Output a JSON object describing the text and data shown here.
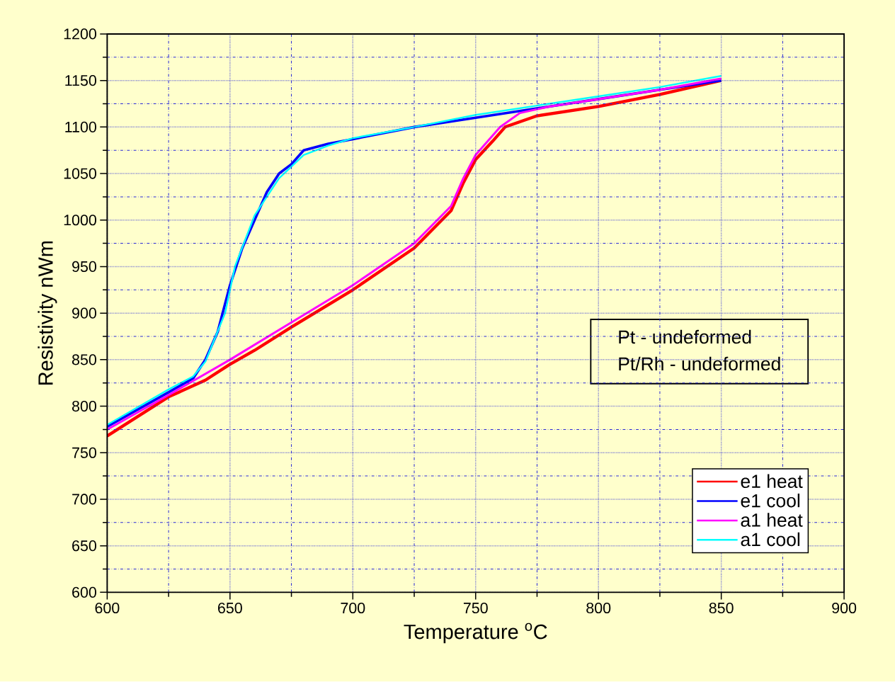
{
  "chart_data": {
    "type": "line",
    "xlabel": "Temperature    $^{o}$C",
    "ylabel": "Resistivity    nWm",
    "annotations": [
      "Pt - undeformed",
      "Pt/Rh - undeformed"
    ],
    "xlim": [
      600,
      900
    ],
    "ylim": [
      600,
      1200
    ],
    "xticks": [
      600,
      {
        "value": 625,
        "label": null
      },
      650,
      {
        "value": 675,
        "label": null
      },
      700,
      {
        "value": 725,
        "label": null
      },
      750,
      {
        "value": 775,
        "label": null
      },
      800,
      {
        "value": 825,
        "label": null
      },
      850,
      {
        "value": 875,
        "label": null
      },
      900
    ],
    "yticks": [
      600,
      {
        "value": 625,
        "label": null
      },
      650,
      {
        "value": 675,
        "label": null
      },
      700,
      {
        "value": 725,
        "label": null
      },
      750,
      {
        "value": 775,
        "label": null
      },
      800,
      {
        "value": 825,
        "label": null
      },
      850,
      {
        "value": 875,
        "label": null
      },
      900,
      {
        "value": 925,
        "label": null
      },
      950,
      {
        "value": 975,
        "label": null
      },
      1000,
      {
        "value": 1025,
        "label": null
      },
      1050,
      {
        "value": 1075,
        "label": null
      },
      1100,
      {
        "value": 1125,
        "label": null
      },
      1150,
      {
        "value": 1175,
        "label": null
      },
      1200
    ],
    "grid": true,
    "legend": "bottom right",
    "series": [
      {
        "name": "e1 heat",
        "color": "#ff0000",
        "x": [
          600,
          625,
          640,
          650,
          660,
          675,
          700,
          725,
          740,
          745,
          750,
          757,
          762,
          775,
          800,
          825,
          850
        ],
        "values": [
          768,
          810,
          828,
          845,
          860,
          885,
          925,
          970,
          1010,
          1040,
          1065,
          1085,
          1100,
          1112,
          1122,
          1135,
          1150
        ]
      },
      {
        "name": "e1 cool",
        "color": "#0000ff",
        "x": [
          600,
          625,
          635,
          640,
          645,
          650,
          655,
          660,
          665,
          670,
          675,
          680,
          690,
          700,
          725,
          750,
          775,
          800,
          825,
          850
        ],
        "values": [
          778,
          815,
          830,
          850,
          880,
          930,
          970,
          1000,
          1030,
          1050,
          1060,
          1075,
          1082,
          1087,
          1100,
          1110,
          1120,
          1130,
          1140,
          1150
        ]
      },
      {
        "name": "a1 heat",
        "color": "#ff00ff",
        "x": [
          600,
          625,
          650,
          675,
          700,
          725,
          740,
          745,
          750,
          760,
          768,
          780,
          800,
          825,
          850
        ],
        "values": [
          775,
          812,
          850,
          890,
          930,
          975,
          1015,
          1045,
          1070,
          1100,
          1115,
          1122,
          1130,
          1140,
          1152
        ]
      },
      {
        "name": "a1 cool",
        "color": "#00ffff",
        "x": [
          600,
          625,
          635,
          640,
          648,
          652,
          660,
          670,
          680,
          690,
          700,
          725,
          750,
          775,
          800,
          825,
          850
        ],
        "values": [
          780,
          818,
          832,
          848,
          900,
          950,
          1005,
          1045,
          1070,
          1080,
          1088,
          1100,
          1113,
          1123,
          1133,
          1143,
          1155
        ]
      }
    ]
  }
}
